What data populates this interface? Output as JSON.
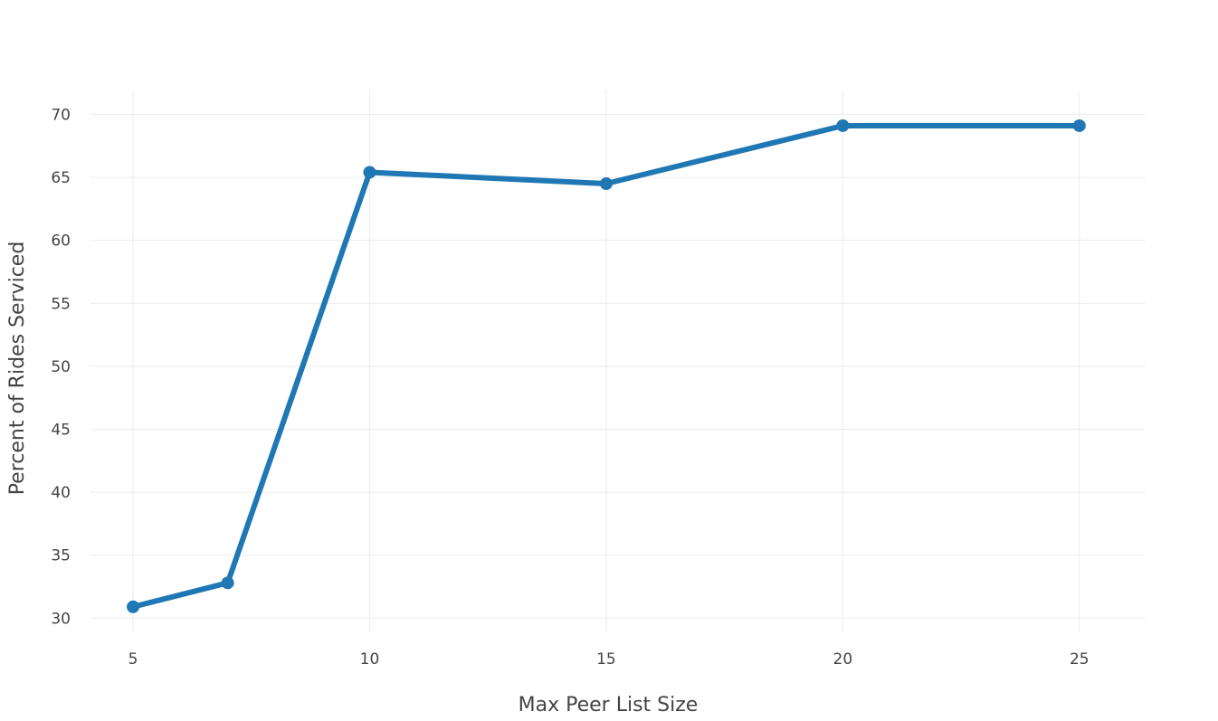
{
  "chart_data": {
    "type": "line",
    "title": "",
    "xlabel": "Max Peer List Size",
    "ylabel": "Percent of Rides Serviced",
    "xlim": [
      4.1,
      26.4
    ],
    "ylim": [
      28.8,
      71.9
    ],
    "x_ticks": [
      5,
      10,
      15,
      20,
      25
    ],
    "y_ticks": [
      30,
      35,
      40,
      45,
      50,
      55,
      60,
      65,
      70
    ],
    "grid": true,
    "legend": "none",
    "series": [
      {
        "color": "#1f77b4",
        "x": [
          5,
          7,
          10,
          15,
          20,
          25
        ],
        "y": [
          30.9,
          32.8,
          65.4,
          64.5,
          69.1,
          69.1
        ]
      }
    ]
  }
}
